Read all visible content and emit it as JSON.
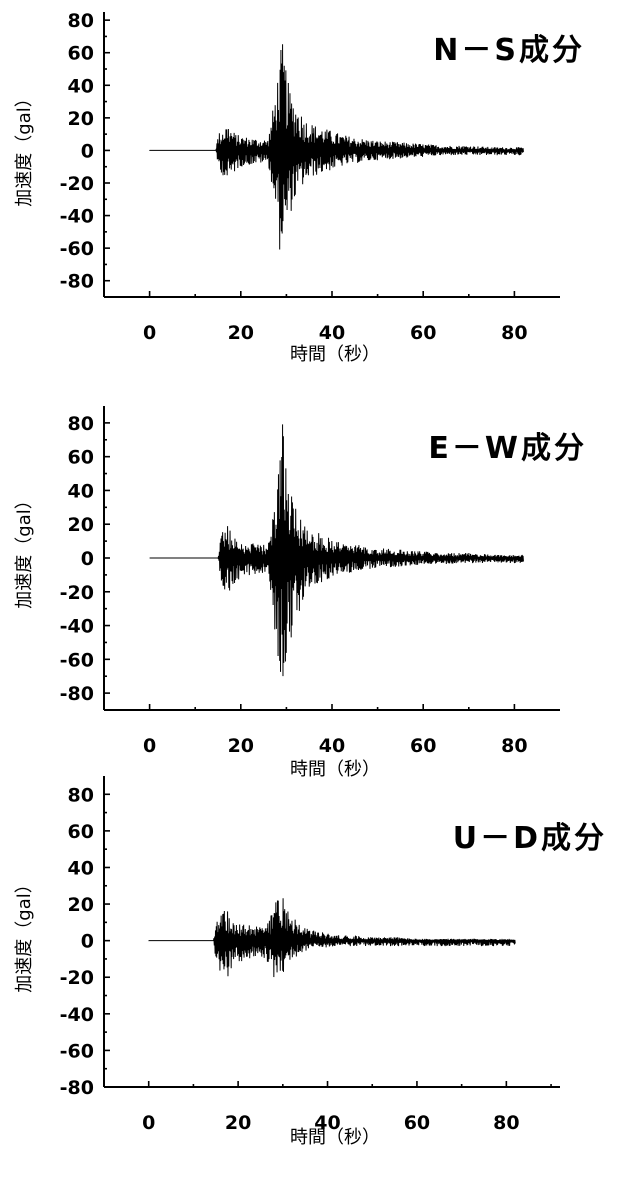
{
  "chart_data": [
    {
      "type": "line",
      "title": "N－S成分",
      "xlabel": "時間（秒）",
      "ylabel": "加速度（gal）",
      "xlim": [
        -10,
        90
      ],
      "ylim": [
        -90,
        85
      ],
      "xticks": [
        0,
        20,
        40,
        60,
        80
      ],
      "yticks": [
        80,
        60,
        40,
        20,
        0,
        -20,
        -40,
        -60,
        -80
      ],
      "grid": false,
      "series": [
        {
          "x": [
            0,
            14.5,
            15,
            16,
            17,
            18,
            19,
            20,
            22,
            24,
            26,
            27,
            28,
            28.5,
            29,
            29.5,
            30,
            30.5,
            31,
            32,
            33,
            34,
            35,
            36,
            38,
            40,
            42,
            45,
            50,
            55,
            60,
            65,
            70,
            75,
            82
          ],
          "peaks": [
            0,
            0,
            10,
            14,
            17,
            13,
            10,
            9,
            8,
            7,
            7,
            25,
            45,
            55,
            68,
            62,
            50,
            40,
            35,
            30,
            25,
            20,
            18,
            16,
            14,
            12,
            10,
            8,
            6,
            5,
            4,
            3,
            3,
            2,
            2
          ],
          "troughs": [
            0,
            0,
            -10,
            -15,
            -20,
            -16,
            -12,
            -10,
            -9,
            -8,
            -8,
            -25,
            -45,
            -62,
            -58,
            -60,
            -50,
            -45,
            -38,
            -30,
            -25,
            -20,
            -18,
            -16,
            -14,
            -12,
            -10,
            -8,
            -6,
            -5,
            -4,
            -3,
            -3,
            -3,
            -3
          ]
        }
      ]
    },
    {
      "type": "line",
      "title": "E－W成分",
      "xlabel": "時間（秒）",
      "ylabel": "加速度（gal）",
      "xlim": [
        -10,
        90
      ],
      "ylim": [
        -90,
        90
      ],
      "xticks": [
        0,
        20,
        40,
        60,
        80
      ],
      "yticks": [
        80,
        60,
        40,
        20,
        0,
        -20,
        -40,
        -60,
        -80
      ],
      "grid": false,
      "series": [
        {
          "x": [
            0,
            15,
            15.5,
            16,
            17,
            18,
            19,
            20,
            22,
            24,
            26,
            27,
            28,
            28.5,
            29,
            29.5,
            30,
            31,
            32,
            33,
            34,
            35,
            36,
            38,
            40,
            42,
            45,
            50,
            55,
            60,
            65,
            70,
            75,
            82
          ],
          "peaks": [
            0,
            0,
            12,
            18,
            20,
            15,
            12,
            10,
            9,
            8,
            8,
            30,
            55,
            65,
            85,
            70,
            55,
            45,
            35,
            28,
            22,
            18,
            16,
            14,
            12,
            10,
            8,
            6,
            5,
            4,
            3,
            3,
            2,
            2
          ],
          "troughs": [
            0,
            0,
            -12,
            -18,
            -22,
            -18,
            -14,
            -12,
            -10,
            -9,
            -9,
            -35,
            -55,
            -70,
            -68,
            -72,
            -60,
            -50,
            -40,
            -30,
            -22,
            -18,
            -16,
            -14,
            -12,
            -10,
            -8,
            -6,
            -5,
            -4,
            -4,
            -3,
            -3,
            -3
          ]
        }
      ]
    },
    {
      "type": "line",
      "title": "U－D成分",
      "xlabel": "時間（秒）",
      "ylabel": "加速度（gal）",
      "xlim": [
        -10,
        92
      ],
      "ylim": [
        -80,
        90
      ],
      "xticks": [
        0,
        20,
        40,
        60,
        80
      ],
      "yticks": [
        80,
        60,
        40,
        20,
        0,
        -20,
        -40,
        -60,
        -80
      ],
      "grid": false,
      "series": [
        {
          "x": [
            0,
            14.5,
            15,
            16,
            17,
            18,
            19,
            20,
            22,
            24,
            26,
            27,
            28,
            29,
            30,
            31,
            32,
            33,
            34,
            35,
            36,
            38,
            40,
            42,
            45,
            50,
            55,
            60,
            65,
            70,
            75,
            82
          ],
          "peaks": [
            0,
            0,
            10,
            15,
            18,
            15,
            12,
            10,
            9,
            8,
            8,
            12,
            20,
            27,
            24,
            20,
            15,
            12,
            9,
            7,
            6,
            5,
            4,
            3,
            3,
            2,
            2,
            1,
            1,
            1,
            1,
            1
          ],
          "troughs": [
            0,
            0,
            -12,
            -18,
            -22,
            -20,
            -16,
            -12,
            -10,
            -9,
            -10,
            -14,
            -20,
            -22,
            -20,
            -16,
            -12,
            -9,
            -7,
            -6,
            -5,
            -4,
            -4,
            -3,
            -3,
            -3,
            -3,
            -3,
            -3,
            -3,
            -3,
            -3
          ]
        }
      ]
    }
  ]
}
